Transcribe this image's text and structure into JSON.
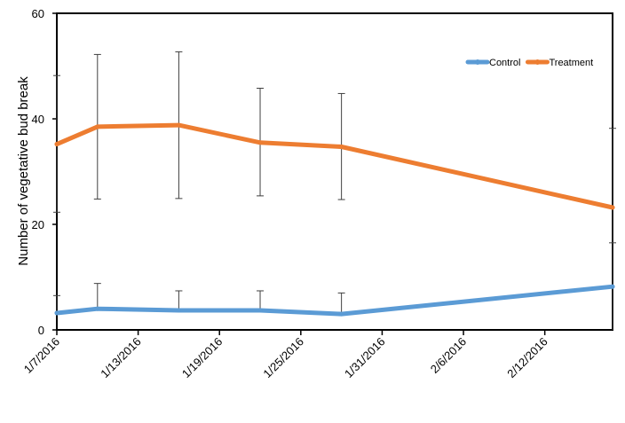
{
  "chart_data": {
    "type": "line",
    "title": "",
    "xlabel": "",
    "ylabel": "Number of vegetative bud break",
    "x_tick_labels": [
      "1/7/2016",
      "1/13/2016",
      "1/19/2016",
      "1/25/2016",
      "1/31/2016",
      "2/6/2016",
      "2/12/2016"
    ],
    "y_tick_labels": [
      "0",
      "20",
      "40",
      "60"
    ],
    "xlim": [
      "2016-01-07",
      "2016-02-17"
    ],
    "ylim": [
      0,
      60
    ],
    "grid": false,
    "legend_position": "top-right",
    "series": [
      {
        "name": "Control",
        "color": "#5b9bd5",
        "points": [
          {
            "date": "2016-01-07",
            "y": 3.2,
            "err_upper": 6.5
          },
          {
            "date": "2016-01-10",
            "y": 4.0,
            "err_upper": 8.8
          },
          {
            "date": "2016-01-16",
            "y": 3.7,
            "err_upper": 7.4
          },
          {
            "date": "2016-01-22",
            "y": 3.7,
            "err_upper": 7.4
          },
          {
            "date": "2016-01-28",
            "y": 3.0,
            "err_upper": 7.0
          },
          {
            "date": "2016-02-17",
            "y": 8.2,
            "err_upper": 16.5
          }
        ]
      },
      {
        "name": "Treatment",
        "color": "#ed7d31",
        "points": [
          {
            "date": "2016-01-07",
            "y": 35.2,
            "err_upper": 48.2,
            "err_lower": 22.3
          },
          {
            "date": "2016-01-10",
            "y": 38.5,
            "err_upper": 52.2,
            "err_lower": 24.8
          },
          {
            "date": "2016-01-16",
            "y": 38.8,
            "err_upper": 52.7,
            "err_lower": 24.9
          },
          {
            "date": "2016-01-22",
            "y": 35.5,
            "err_upper": 45.8,
            "err_lower": 25.4
          },
          {
            "date": "2016-01-28",
            "y": 34.7,
            "err_upper": 44.8,
            "err_lower": 24.7
          },
          {
            "date": "2016-02-17",
            "y": 23.2,
            "err_upper": 38.2,
            "err_lower": 0
          }
        ]
      }
    ]
  }
}
